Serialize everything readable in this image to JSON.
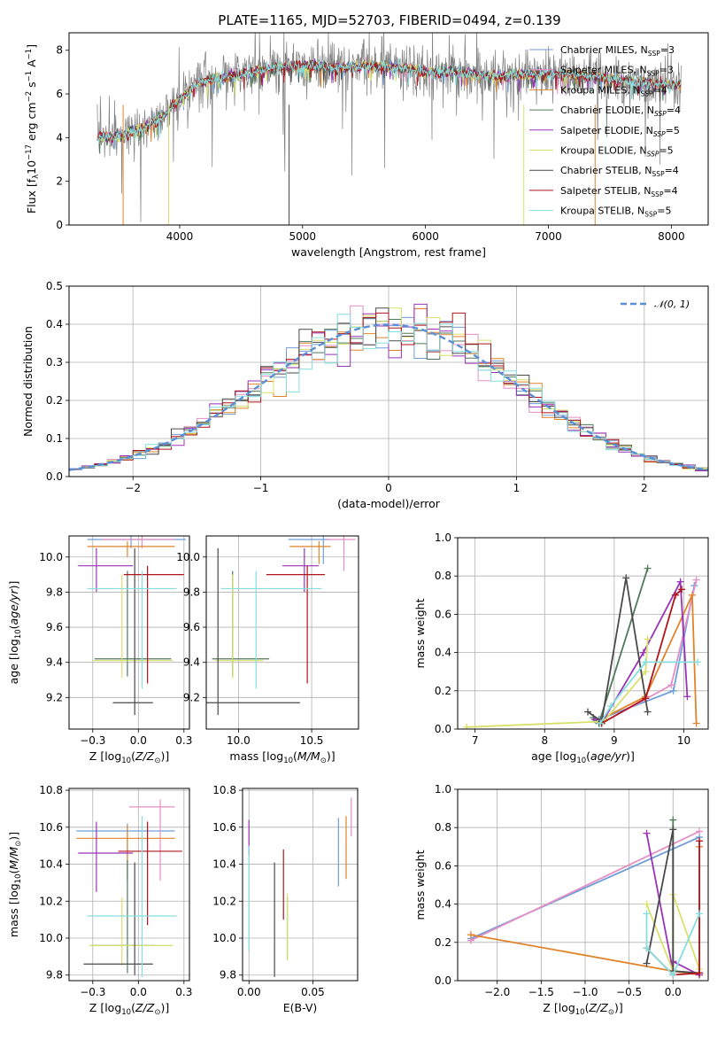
{
  "title": "PLATE=1165, MJD=52703, FIBERID=0494, z=0.139",
  "colors": {
    "Chabrier MILES": "#6f9fd8",
    "Salpeter MILES": "#e58fc5",
    "Kroupa MILES": "#e1832b",
    "Chabrier ELODIE": "#4f7a59",
    "Salpeter ELODIE": "#9a32b8",
    "Kroupa ELODIE": "#d8e06b",
    "Chabrier STELIB": "#4a4a4a",
    "Salpeter STELIB": "#b0141c",
    "Kroupa STELIB": "#86dede",
    "data": "#808080",
    "normal": "#5a8fd8"
  },
  "chart_data": [
    {
      "id": "spectrum",
      "type": "line",
      "xlabel": "wavelength [Angstrom, rest frame]",
      "ylabel": "Flux [f_λ 10^-17 erg cm^-2 s^-1 A^-1]",
      "xlim": [
        3100,
        8300
      ],
      "ylim": [
        0,
        8.8
      ],
      "xticks": [
        4000,
        5000,
        6000,
        7000,
        8000
      ],
      "yticks": [
        0,
        2,
        4,
        6,
        8
      ],
      "legend_position": "upper right",
      "legend": [
        {
          "name": "Chabrier MILES",
          "nssp": "3"
        },
        {
          "name": "Salpeter MILES",
          "nssp": "3"
        },
        {
          "name": "Kroupa MILES",
          "nssp": "4"
        },
        {
          "name": "Chabrier ELODIE",
          "nssp": "4"
        },
        {
          "name": "Salpeter ELODIE",
          "nssp": "5"
        },
        {
          "name": "Kroupa ELODIE",
          "nssp": "5"
        },
        {
          "name": "Chabrier STELIB",
          "nssp": "4"
        },
        {
          "name": "Salpeter STELIB",
          "nssp": "4"
        },
        {
          "name": "Kroupa STELIB",
          "nssp": "5"
        }
      ],
      "continuum": [
        [
          3330,
          4.0
        ],
        [
          3500,
          4.1
        ],
        [
          3700,
          4.4
        ],
        [
          3850,
          4.9
        ],
        [
          3950,
          5.5
        ],
        [
          4050,
          6.0
        ],
        [
          4150,
          6.5
        ],
        [
          4300,
          6.7
        ],
        [
          4500,
          6.9
        ],
        [
          4700,
          7.1
        ],
        [
          4900,
          7.3
        ],
        [
          5100,
          7.3
        ],
        [
          5300,
          7.2
        ],
        [
          5500,
          7.3
        ],
        [
          5800,
          7.2
        ],
        [
          6000,
          7.0
        ],
        [
          6200,
          7.0
        ],
        [
          6400,
          6.9
        ],
        [
          6600,
          6.8
        ],
        [
          6800,
          6.9
        ],
        [
          7000,
          6.9
        ],
        [
          7200,
          6.9
        ],
        [
          7400,
          6.8
        ],
        [
          7600,
          6.6
        ],
        [
          7800,
          6.5
        ],
        [
          8000,
          6.4
        ],
        [
          8080,
          6.4
        ]
      ]
    },
    {
      "id": "residuals",
      "type": "step",
      "xlabel": "(data-model)/error",
      "ylabel": "Normed distribution",
      "xlim": [
        -2.5,
        2.5
      ],
      "ylim": [
        0,
        0.5
      ],
      "xticks": [
        -2,
        -1,
        0,
        1,
        2
      ],
      "yticks": [
        0.0,
        0.1,
        0.2,
        0.3,
        0.4,
        0.5
      ],
      "bins": 50,
      "normal_label": "N(0,1)",
      "normal_mean": 0,
      "normal_sigma": 1
    },
    {
      "id": "age-Z",
      "type": "errorbar",
      "xlabel": "Z [log10(Z/Z⊙)]",
      "ylabel": "age [log10(age/yr)]",
      "xlim": [
        -0.38,
        0.28
      ],
      "ylim": [
        9.02,
        10.12
      ],
      "xticks": [
        -0.25,
        0.0,
        0.25
      ],
      "yticks": [
        9.2,
        9.4,
        9.6,
        9.8,
        10.0
      ],
      "points": [
        {
          "model": "Chabrier MILES",
          "x": -0.04,
          "xerr": [
            0.24,
            0.3
          ],
          "y": 10.1,
          "yerr": [
            0.05,
            0.02
          ]
        },
        {
          "model": "Salpeter MILES",
          "x": 0.02,
          "xerr": [
            0.22,
            0.18
          ],
          "y": 10.1,
          "yerr": [
            0.05,
            0.02
          ]
        },
        {
          "model": "Kroupa MILES",
          "x": -0.06,
          "xerr": [
            0.22,
            0.26
          ],
          "y": 10.06,
          "yerr": [
            0.06,
            0.03
          ]
        },
        {
          "model": "Chabrier ELODIE",
          "x": -0.06,
          "xerr": [
            0.18,
            0.24
          ],
          "y": 9.42,
          "yerr": [
            0.1,
            0.5
          ]
        },
        {
          "model": "Salpeter ELODIE",
          "x": -0.23,
          "xerr": [
            0.1,
            0.2
          ],
          "y": 9.95,
          "yerr": [
            0.15,
            0.1
          ]
        },
        {
          "model": "Kroupa ELODIE",
          "x": -0.09,
          "xerr": [
            0.16,
            0.28
          ],
          "y": 9.41,
          "yerr": [
            0.1,
            0.49
          ]
        },
        {
          "model": "Chabrier STELIB",
          "x": -0.02,
          "xerr": [
            0.12,
            0.1
          ],
          "y": 9.17,
          "yerr": [
            0.07,
            0.88
          ]
        },
        {
          "model": "Salpeter STELIB",
          "x": 0.05,
          "xerr": [
            0.13,
            0.2
          ],
          "y": 9.9,
          "yerr": [
            0.62,
            0.05
          ]
        },
        {
          "model": "Kroupa STELIB",
          "x": 0.02,
          "xerr": [
            0.3,
            0.19
          ],
          "y": 9.82,
          "yerr": [
            0.57,
            0.1
          ]
        }
      ]
    },
    {
      "id": "age-mass",
      "type": "errorbar",
      "xlabel": "mass [log10(M/M⊙)]",
      "ylabel": "",
      "xlim": [
        9.78,
        10.82
      ],
      "ylim": [
        9.02,
        10.12
      ],
      "xticks": [
        10.0,
        10.5
      ],
      "yticks": [
        9.2,
        9.4,
        9.6,
        9.8,
        10.0
      ],
      "points": [
        {
          "model": "Chabrier MILES",
          "x": 10.58,
          "xerr": [
            0.24,
            0.05
          ],
          "y": 10.1,
          "yerr": [
            0.14,
            0.02
          ]
        },
        {
          "model": "Salpeter MILES",
          "x": 10.72,
          "xerr": [
            0.12,
            0.08
          ],
          "y": 10.1,
          "yerr": [
            0.18,
            0.02
          ]
        },
        {
          "model": "Kroupa MILES",
          "x": 10.55,
          "xerr": [
            0.2,
            0.08
          ],
          "y": 10.06,
          "yerr": [
            0.1,
            0.03
          ]
        },
        {
          "model": "Chabrier ELODIE",
          "x": 9.96,
          "xerr": [
            0.14,
            0.25
          ],
          "y": 9.42,
          "yerr": [
            0.1,
            0.5
          ]
        },
        {
          "model": "Salpeter ELODIE",
          "x": 10.45,
          "xerr": [
            0.15,
            0.1
          ],
          "y": 9.95,
          "yerr": [
            0.15,
            0.1
          ]
        },
        {
          "model": "Kroupa ELODIE",
          "x": 9.96,
          "xerr": [
            0.12,
            0.21
          ],
          "y": 9.41,
          "yerr": [
            0.1,
            0.49
          ]
        },
        {
          "model": "Chabrier STELIB",
          "x": 9.86,
          "xerr": [
            0.1,
            0.56
          ],
          "y": 9.17,
          "yerr": [
            0.07,
            0.88
          ]
        },
        {
          "model": "Salpeter STELIB",
          "x": 10.47,
          "xerr": [
            0.28,
            0.12
          ],
          "y": 9.9,
          "yerr": [
            0.62,
            0.05
          ]
        },
        {
          "model": "Kroupa STELIB",
          "x": 10.12,
          "xerr": [
            0.24,
            0.45
          ],
          "y": 9.82,
          "yerr": [
            0.57,
            0.1
          ]
        }
      ]
    },
    {
      "id": "mw-age",
      "type": "line",
      "xlabel": "age [log10(age/yr)]",
      "ylabel": "mass weight",
      "xlim": [
        6.75,
        10.35
      ],
      "ylim": [
        0,
        1
      ],
      "xticks": [
        7,
        8,
        9,
        10
      ],
      "yticks": [
        0.0,
        0.2,
        0.4,
        0.6,
        0.8,
        1.0
      ],
      "series": [
        {
          "model": "Chabrier MILES",
          "x": [
            8.78,
            9.85,
            10.15
          ],
          "y": [
            0.05,
            0.2,
            0.75
          ]
        },
        {
          "model": "Salpeter MILES",
          "x": [
            8.82,
            9.82,
            10.18
          ],
          "y": [
            0.03,
            0.23,
            0.78
          ]
        },
        {
          "model": "Kroupa MILES",
          "x": [
            8.8,
            9.45,
            10.12,
            10.18
          ],
          "y": [
            0.05,
            0.17,
            0.7,
            0.03
          ]
        },
        {
          "model": "Chabrier ELODIE",
          "x": [
            8.7,
            8.78,
            9.48
          ],
          "y": [
            0.06,
            0.03,
            0.84
          ]
        },
        {
          "model": "Salpeter ELODIE",
          "x": [
            8.72,
            8.85,
            9.42,
            9.95,
            10.05
          ],
          "y": [
            0.05,
            0.05,
            0.4,
            0.77,
            0.17
          ]
        },
        {
          "model": "Kroupa ELODIE",
          "x": [
            6.88,
            8.85,
            9.45,
            9.48
          ],
          "y": [
            0.01,
            0.04,
            0.3,
            0.47
          ]
        },
        {
          "model": "Chabrier STELIB",
          "x": [
            8.62,
            8.82,
            9.17,
            9.48
          ],
          "y": [
            0.09,
            0.04,
            0.79,
            0.09
          ]
        },
        {
          "model": "Salpeter STELIB",
          "x": [
            8.82,
            9.45,
            9.88,
            9.97
          ],
          "y": [
            0.03,
            0.16,
            0.7,
            0.73
          ]
        },
        {
          "model": "Kroupa STELIB",
          "x": [
            8.8,
            8.95,
            9.45,
            10.2
          ],
          "y": [
            0.03,
            0.12,
            0.35,
            0.35
          ]
        }
      ]
    },
    {
      "id": "mass-Z",
      "type": "errorbar",
      "xlabel": "Z [log10(Z/Z⊙)]",
      "ylabel": "mass [log10(M/M⊙)]",
      "xlim": [
        -0.38,
        0.28
      ],
      "ylim": [
        9.77,
        10.81
      ],
      "xticks": [
        -0.25,
        0.0,
        0.25
      ],
      "yticks": [
        9.8,
        10.0,
        10.2,
        10.4,
        10.6,
        10.8
      ],
      "points": [
        {
          "model": "Chabrier MILES",
          "x": -0.06,
          "xerr": [
            0.28,
            0.26
          ],
          "y": 10.58,
          "yerr": [
            0.28,
            0.04
          ]
        },
        {
          "model": "Salpeter MILES",
          "x": 0.12,
          "xerr": [
            0.17,
            0.08
          ],
          "y": 10.71,
          "yerr": [
            0.4,
            0.04
          ]
        },
        {
          "model": "Kroupa MILES",
          "x": -0.06,
          "xerr": [
            0.28,
            0.26
          ],
          "y": 10.54,
          "yerr": [
            0.22,
            0.07
          ]
        },
        {
          "model": "Chabrier ELODIE",
          "x": -0.06,
          "xerr": [
            0.2,
            0.15
          ],
          "y": 9.96,
          "yerr": [
            0.15,
            0.46
          ]
        },
        {
          "model": "Salpeter ELODIE",
          "x": -0.23,
          "xerr": [
            0.1,
            0.2
          ],
          "y": 10.46,
          "yerr": [
            0.21,
            0.17
          ]
        },
        {
          "model": "Kroupa ELODIE",
          "x": -0.09,
          "xerr": [
            0.18,
            0.28
          ],
          "y": 9.96,
          "yerr": [
            0.11,
            0.26
          ]
        },
        {
          "model": "Chabrier STELIB",
          "x": -0.02,
          "xerr": [
            0.28,
            0.1
          ],
          "y": 9.86,
          "yerr": [
            0.06,
            0.55
          ]
        },
        {
          "model": "Salpeter STELIB",
          "x": 0.05,
          "xerr": [
            0.16,
            0.19
          ],
          "y": 10.47,
          "yerr": [
            0.4,
            0.16
          ]
        },
        {
          "model": "Kroupa STELIB",
          "x": 0.02,
          "xerr": [
            0.3,
            0.19
          ],
          "y": 10.12,
          "yerr": [
            0.33,
            0.54
          ]
        }
      ]
    },
    {
      "id": "mass-EBV",
      "type": "errorbar",
      "xlabel": "E(B-V)",
      "ylabel": "",
      "xlim": [
        -0.005,
        0.085
      ],
      "ylim": [
        9.77,
        10.81
      ],
      "xticks": [
        0.0,
        0.05
      ],
      "yticks": [
        9.8,
        10.0,
        10.2,
        10.4,
        10.6,
        10.8
      ],
      "points": [
        {
          "model": "Chabrier MILES",
          "x": 0.07,
          "y": 10.58,
          "yerr": [
            0.3,
            0.07
          ]
        },
        {
          "model": "Salpeter MILES",
          "x": 0.08,
          "y": 10.71,
          "yerr": [
            0.16,
            0.05
          ]
        },
        {
          "model": "Kroupa MILES",
          "x": 0.076,
          "y": 10.54,
          "yerr": [
            0.22,
            0.12
          ]
        },
        {
          "model": "Chabrier ELODIE",
          "x": 0.03,
          "y": 9.96,
          "yerr": [
            0.08,
            0.26
          ]
        },
        {
          "model": "Salpeter ELODIE",
          "x": 0.0,
          "y": 10.55,
          "yerr": [
            0.1,
            0.09
          ]
        },
        {
          "model": "Kroupa ELODIE",
          "x": 0.03,
          "y": 10.0,
          "yerr": [
            0.12,
            0.24
          ]
        },
        {
          "model": "Chabrier STELIB",
          "x": 0.02,
          "y": 10.1,
          "yerr": [
            0.31,
            0.31
          ]
        },
        {
          "model": "Salpeter STELIB",
          "x": 0.027,
          "y": 10.26,
          "yerr": [
            0.16,
            0.22
          ]
        },
        {
          "model": "Kroupa STELIB",
          "x": 0.0,
          "y": 10.2,
          "yerr": [
            0.27,
            0.3
          ]
        }
      ]
    },
    {
      "id": "mw-Z",
      "type": "line",
      "xlabel": "Z [log10(Z/Z⊙)]",
      "ylabel": "mass weight",
      "xlim": [
        -2.45,
        0.4
      ],
      "ylim": [
        0,
        1
      ],
      "xticks": [
        -2.0,
        -1.5,
        -1.0,
        -0.5,
        0.0
      ],
      "yticks": [
        0.0,
        0.2,
        0.4,
        0.6,
        0.8,
        1.0
      ],
      "series": [
        {
          "model": "Chabrier MILES",
          "x": [
            -2.3,
            0.3
          ],
          "y": [
            0.22,
            0.75
          ]
        },
        {
          "model": "Salpeter MILES",
          "x": [
            -2.3,
            0.3
          ],
          "y": [
            0.21,
            0.78
          ]
        },
        {
          "model": "Kroupa MILES",
          "x": [
            -2.3,
            0.0,
            0.3,
            0.3
          ],
          "y": [
            0.24,
            0.05,
            0.03,
            0.7
          ]
        },
        {
          "model": "Chabrier ELODIE",
          "x": [
            0.0,
            0.0,
            0.0
          ],
          "y": [
            0.84,
            0.05,
            0.1
          ]
        },
        {
          "model": "Salpeter ELODIE",
          "x": [
            -0.3,
            0.0,
            0.0,
            0.3
          ],
          "y": [
            0.77,
            0.05,
            0.1,
            0.03
          ]
        },
        {
          "model": "Kroupa ELODIE",
          "x": [
            -0.3,
            0.0,
            0.0,
            0.3
          ],
          "y": [
            0.4,
            0.05,
            0.45,
            0.06
          ]
        },
        {
          "model": "Chabrier STELIB",
          "x": [
            -0.3,
            0.0,
            0.0,
            0.3
          ],
          "y": [
            0.09,
            0.79,
            0.05,
            0.04
          ]
        },
        {
          "model": "Salpeter STELIB",
          "x": [
            -0.3,
            0.0,
            0.3,
            0.3
          ],
          "y": [
            0.17,
            0.03,
            0.04,
            0.73
          ]
        },
        {
          "model": "Kroupa STELIB",
          "x": [
            -0.3,
            -0.3,
            0.0,
            0.3
          ],
          "y": [
            0.35,
            0.17,
            0.03,
            0.35
          ]
        }
      ]
    }
  ]
}
